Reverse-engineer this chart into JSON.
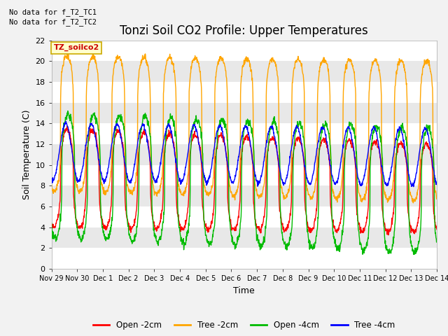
{
  "title": "Tonzi Soil CO2 Profile: Upper Temperatures",
  "ylabel": "Soil Temperature (C)",
  "xlabel": "Time",
  "ylim": [
    0,
    22
  ],
  "xlim": [
    0,
    15
  ],
  "annotation1": "No data for f_T2_TC1",
  "annotation2": "No data for f_T2_TC2",
  "box_label": "TZ_soilco2",
  "line_colors": {
    "open_2cm": "#ff0000",
    "tree_2cm": "#ffa500",
    "open_4cm": "#00bb00",
    "tree_4cm": "#0000ff"
  },
  "legend_labels": [
    "Open -2cm",
    "Tree -2cm",
    "Open -4cm",
    "Tree -4cm"
  ],
  "bg_color": "#e8e8e8",
  "white_band_color": "#ffffff",
  "title_fontsize": 12,
  "tick_fontsize": 7,
  "label_fontsize": 9,
  "fig_bg": "#f2f2f2"
}
